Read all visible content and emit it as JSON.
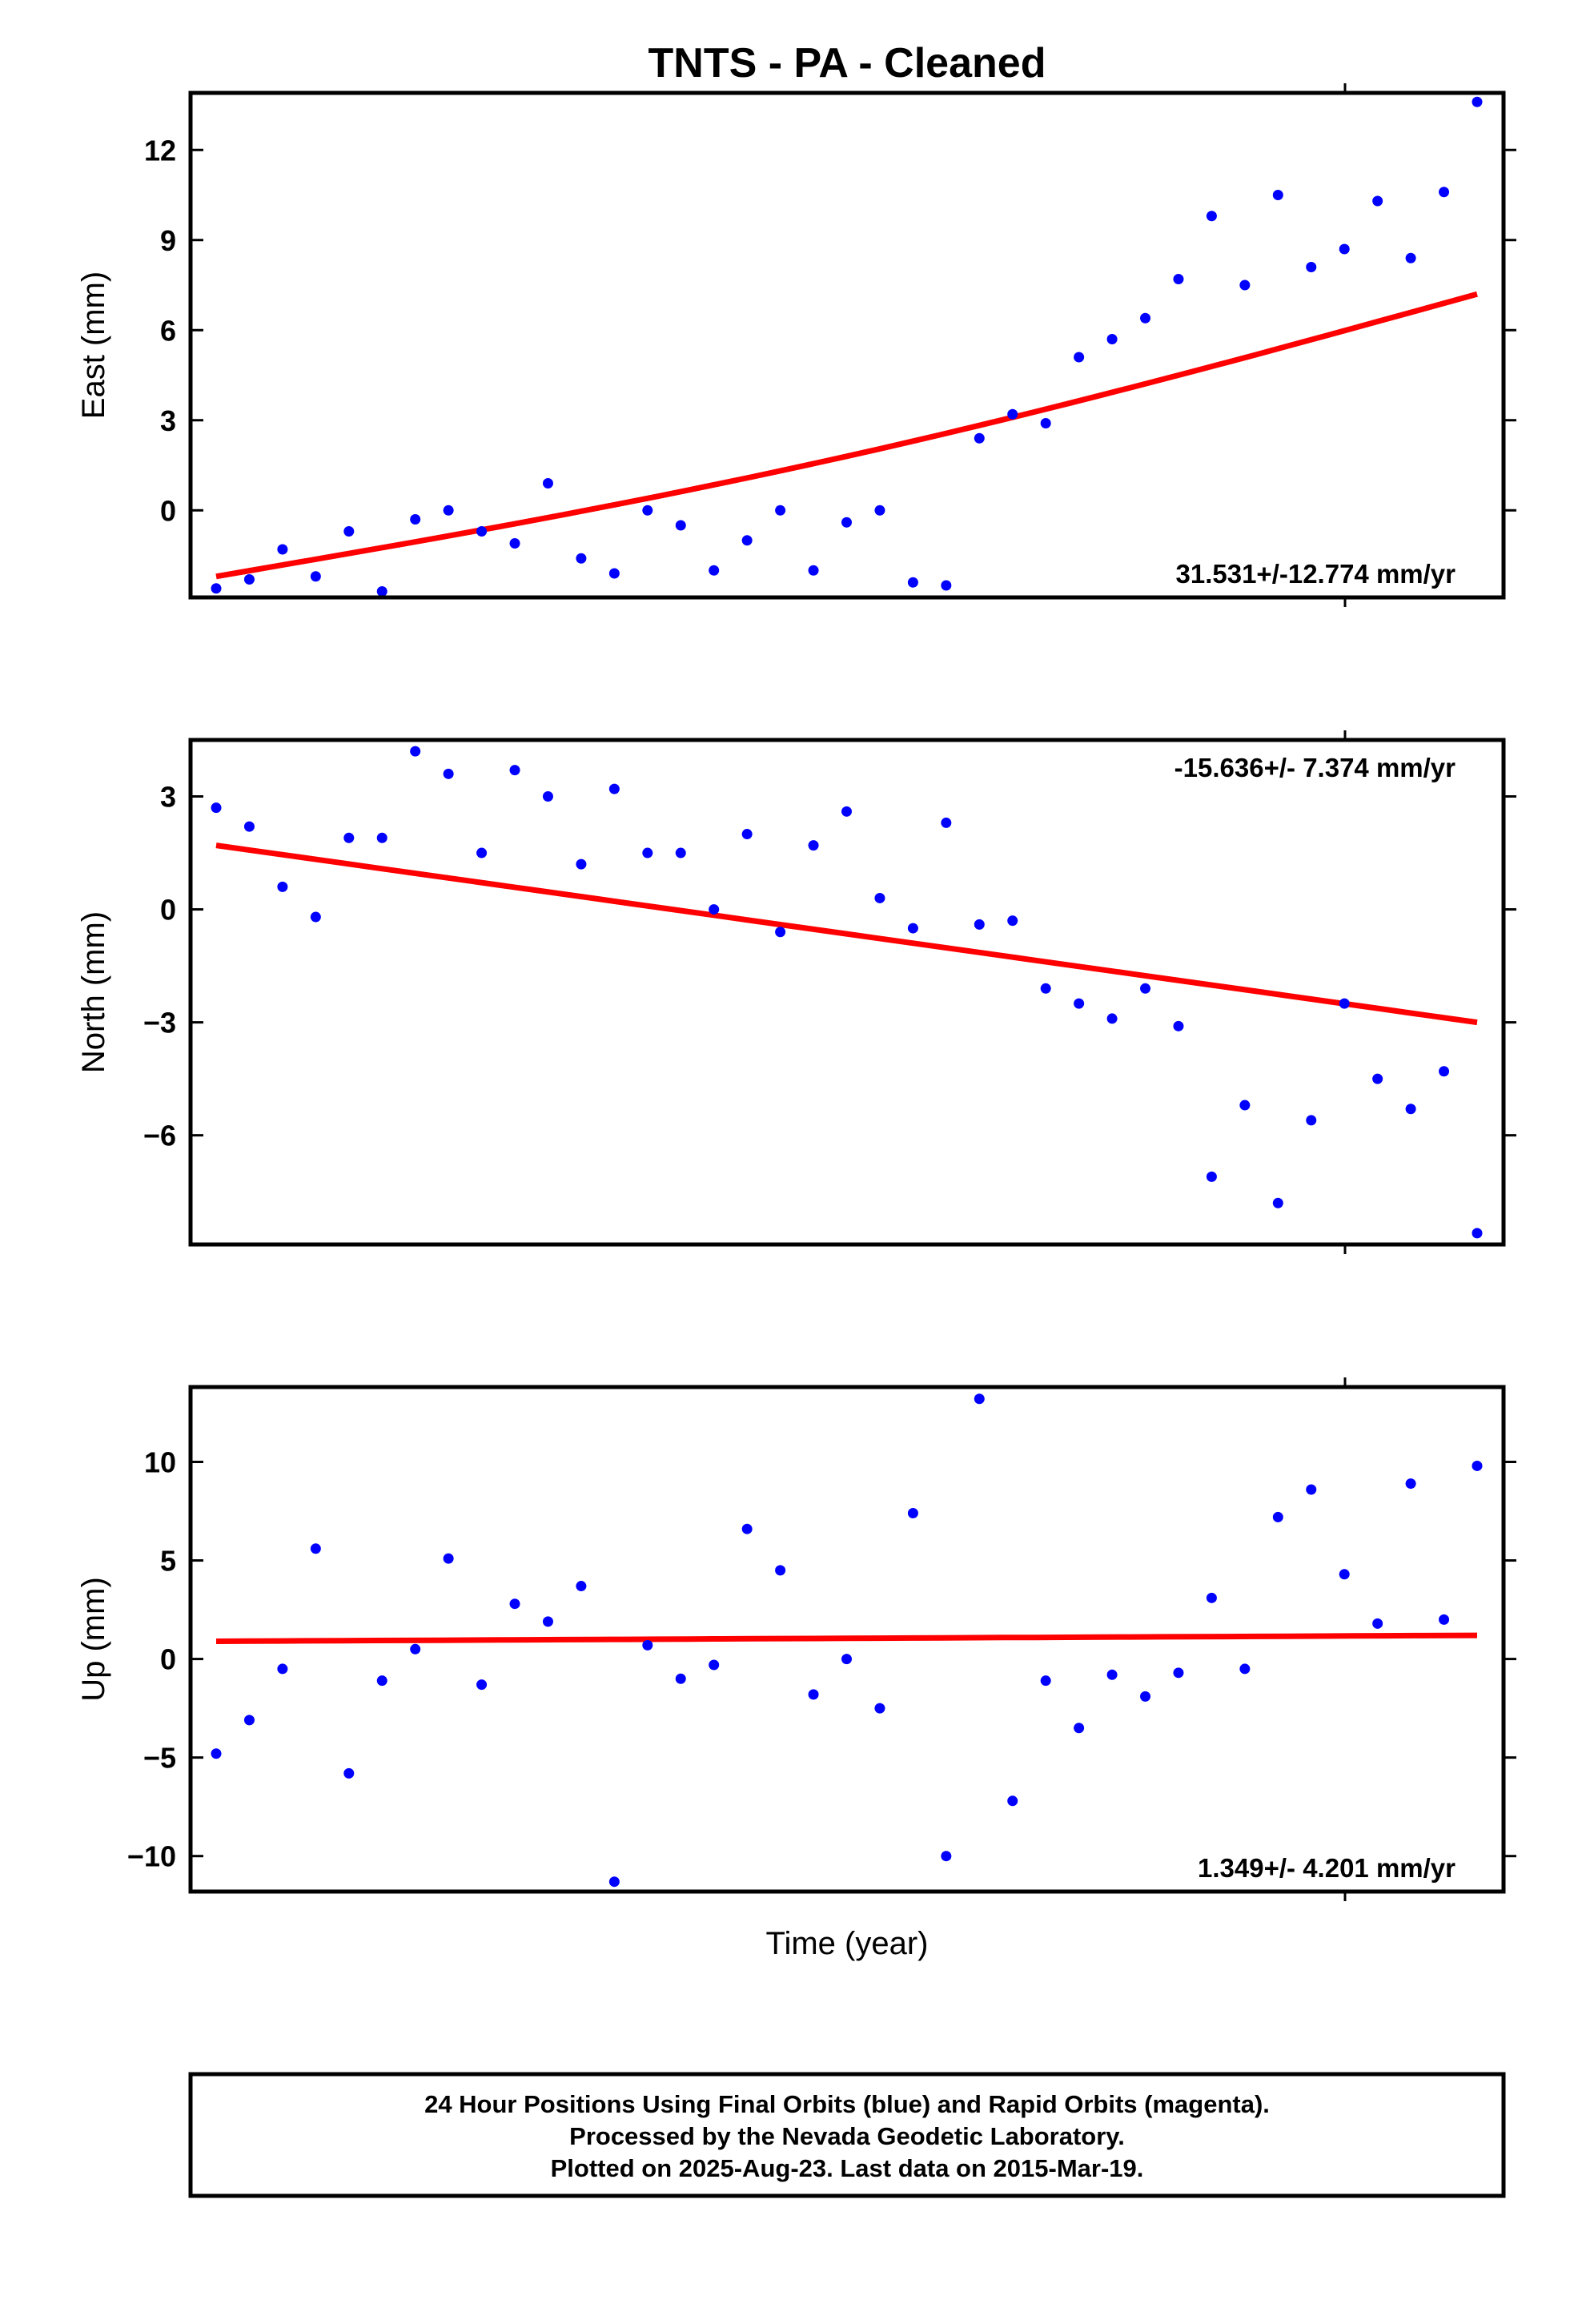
{
  "title": "TNTS  - PA - Cleaned",
  "xlabel": "Time (year)",
  "caption": [
    "24 Hour Positions Using Final Orbits (blue) and Rapid Orbits (magenta).",
    "Processed by the Nevada Geodetic Laboratory.",
    "Plotted on 2025-Aug-23. Last data on 2015-Mar-19."
  ],
  "colors": {
    "points": "#0000ff",
    "trend": "#ff0000",
    "frame": "#000000"
  },
  "chart_data": [
    {
      "type": "scatter",
      "ylabel": "East (mm)",
      "ylim": [
        -2.9,
        13.9
      ],
      "yticks": [
        0,
        3,
        6,
        9,
        12
      ],
      "ytick_labels": [
        "0",
        "3",
        "6",
        "9",
        "12"
      ],
      "grid": false,
      "rate_label": "31.531+/-12.774 mm/yr",
      "rate_position": "bottom-right",
      "trend": {
        "start": -2.2,
        "end": 7.2,
        "slight_curve": 0.7
      },
      "values": [
        -2.6,
        -2.3,
        -1.3,
        -2.2,
        -0.7,
        -2.7,
        -0.3,
        0.0,
        -0.7,
        -1.1,
        0.9,
        -1.6,
        -2.1,
        0.0,
        -0.5,
        -2.0,
        -1.0,
        0.0,
        -2.0,
        -0.4,
        0.0,
        -2.4,
        -2.5,
        2.4,
        3.2,
        2.9,
        5.1,
        5.7,
        6.4,
        7.7,
        9.8,
        7.5,
        10.5,
        8.1,
        8.7,
        10.3,
        8.4,
        10.6,
        13.6
      ]
    },
    {
      "type": "scatter",
      "ylabel": "North (mm)",
      "ylim": [
        -8.9,
        4.5
      ],
      "yticks": [
        -6,
        -3,
        0,
        3
      ],
      "ytick_labels": [
        "−6",
        "−3",
        "0",
        "3"
      ],
      "grid": false,
      "rate_label": "-15.636+/- 7.374 mm/yr",
      "rate_position": "top-right",
      "trend": {
        "start": 1.7,
        "end": -3.0
      },
      "values": [
        2.7,
        2.2,
        0.6,
        -0.2,
        1.9,
        1.9,
        4.2,
        3.6,
        1.5,
        3.7,
        3.0,
        1.2,
        3.2,
        1.5,
        1.5,
        0.0,
        2.0,
        -0.6,
        1.7,
        2.6,
        0.3,
        -0.5,
        2.3,
        -0.4,
        -0.3,
        -2.1,
        -2.5,
        -2.9,
        -2.1,
        -3.1,
        -7.1,
        -5.2,
        -7.8,
        -5.6,
        -2.5,
        -4.5,
        -5.3,
        -4.3,
        -8.6
      ]
    },
    {
      "type": "scatter",
      "ylabel": "Up (mm)",
      "ylim": [
        -11.8,
        13.8
      ],
      "yticks": [
        -10,
        -5,
        0,
        5,
        10
      ],
      "ytick_labels": [
        "−10",
        "−5",
        "0",
        "5",
        "10"
      ],
      "grid": false,
      "rate_label": "1.349+/- 4.201 mm/yr",
      "rate_position": "bottom-right",
      "trend": {
        "start": 0.9,
        "end": 1.2
      },
      "values": [
        -4.8,
        -3.1,
        -0.5,
        5.6,
        -5.8,
        -1.1,
        0.5,
        5.1,
        -1.3,
        2.8,
        1.9,
        3.7,
        -11.3,
        0.7,
        -1.0,
        -0.3,
        6.6,
        4.5,
        -1.8,
        0.0,
        -2.5,
        7.4,
        -10.0,
        13.2,
        -7.2,
        -1.1,
        -3.5,
        -0.8,
        -1.9,
        -0.7,
        3.1,
        -0.5,
        7.2,
        8.6,
        4.3,
        1.8,
        8.9,
        2.0,
        9.8
      ]
    }
  ]
}
